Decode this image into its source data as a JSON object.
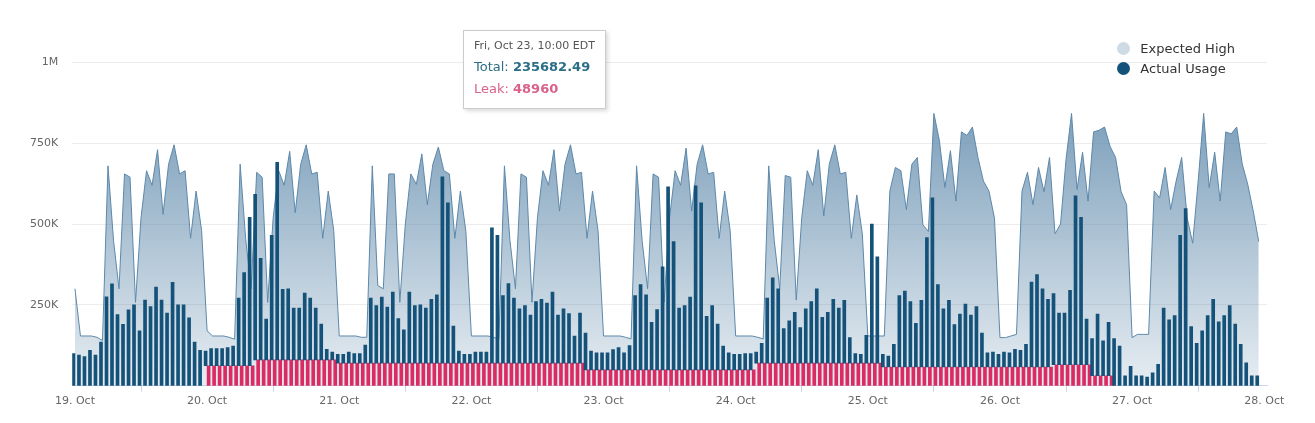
{
  "chart_data": {
    "type": "bar",
    "legend": "top right",
    "grid": "y",
    "annotations": [
      "Fri, Oct 23, 10:00 EDT",
      "Total: 235682.49",
      "Leak: 48960"
    ],
    "xlim": [
      "--10-18T23:30",
      "--10-28T00:30"
    ],
    "xticks": [
      {
        "value": "--10-19",
        "label": "19. Oct"
      },
      {
        "value": "--10-20",
        "label": "20. Oct"
      },
      {
        "value": "--10-21",
        "label": "21. Oct"
      },
      {
        "value": "--10-22",
        "label": "22. Oct"
      },
      {
        "value": "--10-23",
        "label": "23. Oct"
      },
      {
        "value": "--10-24",
        "label": "24. Oct"
      },
      {
        "value": "--10-25",
        "label": "25. Oct"
      },
      {
        "value": "--10-26",
        "label": "26. Oct"
      },
      {
        "value": "--10-27",
        "label": "27. Oct"
      },
      {
        "value": "--10-28",
        "label": "28. Oct"
      }
    ],
    "ylim": [
      0,
      1100000
    ],
    "yticks": [
      {
        "value": 250000,
        "label": "250K"
      },
      {
        "value": 500000,
        "label": "500K"
      },
      {
        "value": 750000,
        "label": "750K"
      },
      {
        "value": 1000000,
        "label": "1M"
      }
    ],
    "x": [
      "--10-19T00:00",
      "--10-19T01:00",
      "--10-19T02:00",
      "--10-19T03:00",
      "--10-19T04:00",
      "--10-19T05:00",
      "--10-19T06:00",
      "--10-19T07:00",
      "--10-19T08:00",
      "--10-19T09:00",
      "--10-19T10:00",
      "--10-19T11:00",
      "--10-19T12:00",
      "--10-19T13:00",
      "--10-19T14:00",
      "--10-19T15:00",
      "--10-19T16:00",
      "--10-19T17:00",
      "--10-19T18:00",
      "--10-19T19:00",
      "--10-19T20:00",
      "--10-19T21:00",
      "--10-19T22:00",
      "--10-19T23:00",
      "--10-20T00:00",
      "--10-20T01:00",
      "--10-20T02:00",
      "--10-20T03:00",
      "--10-20T04:00",
      "--10-20T05:00",
      "--10-20T06:00",
      "--10-20T07:00",
      "--10-20T08:00",
      "--10-20T09:00",
      "--10-20T10:00",
      "--10-20T11:00",
      "--10-20T12:00",
      "--10-20T13:00",
      "--10-20T14:00",
      "--10-20T15:00",
      "--10-20T16:00",
      "--10-20T17:00",
      "--10-20T18:00",
      "--10-20T19:00",
      "--10-20T20:00",
      "--10-20T21:00",
      "--10-20T22:00",
      "--10-20T23:00",
      "--10-21T00:00",
      "--10-21T01:00",
      "--10-21T02:00",
      "--10-21T03:00",
      "--10-21T04:00",
      "--10-21T05:00",
      "--10-21T06:00",
      "--10-21T07:00",
      "--10-21T08:00",
      "--10-21T09:00",
      "--10-21T10:00",
      "--10-21T11:00",
      "--10-21T12:00",
      "--10-21T13:00",
      "--10-21T14:00",
      "--10-21T15:00",
      "--10-21T16:00",
      "--10-21T17:00",
      "--10-21T18:00",
      "--10-21T19:00",
      "--10-21T20:00",
      "--10-21T21:00",
      "--10-21T22:00",
      "--10-21T23:00",
      "--10-22T00:00",
      "--10-22T01:00",
      "--10-22T02:00",
      "--10-22T03:00",
      "--10-22T04:00",
      "--10-22T05:00",
      "--10-22T06:00",
      "--10-22T07:00",
      "--10-22T08:00",
      "--10-22T09:00",
      "--10-22T10:00",
      "--10-22T11:00",
      "--10-22T12:00",
      "--10-22T13:00",
      "--10-22T14:00",
      "--10-22T15:00",
      "--10-22T16:00",
      "--10-22T17:00",
      "--10-22T18:00",
      "--10-22T19:00",
      "--10-22T20:00",
      "--10-22T21:00",
      "--10-22T22:00",
      "--10-22T23:00",
      "--10-23T00:00",
      "--10-23T01:00",
      "--10-23T02:00",
      "--10-23T03:00",
      "--10-23T04:00",
      "--10-23T05:00",
      "--10-23T06:00",
      "--10-23T07:00",
      "--10-23T08:00",
      "--10-23T09:00",
      "--10-23T10:00",
      "--10-23T11:00",
      "--10-23T12:00",
      "--10-23T13:00",
      "--10-23T14:00",
      "--10-23T15:00",
      "--10-23T16:00",
      "--10-23T17:00",
      "--10-23T18:00",
      "--10-23T19:00",
      "--10-23T20:00",
      "--10-23T21:00",
      "--10-23T22:00",
      "--10-23T23:00",
      "--10-24T00:00",
      "--10-24T01:00",
      "--10-24T02:00",
      "--10-24T03:00",
      "--10-24T04:00",
      "--10-24T05:00",
      "--10-24T06:00",
      "--10-24T07:00",
      "--10-24T08:00",
      "--10-24T09:00",
      "--10-24T10:00",
      "--10-24T11:00",
      "--10-24T12:00",
      "--10-24T13:00",
      "--10-24T14:00",
      "--10-24T15:00",
      "--10-24T16:00",
      "--10-24T17:00",
      "--10-24T18:00",
      "--10-24T19:00",
      "--10-24T20:00",
      "--10-24T21:00",
      "--10-24T22:00",
      "--10-24T23:00",
      "--10-25T00:00",
      "--10-25T01:00",
      "--10-25T02:00",
      "--10-25T03:00",
      "--10-25T04:00",
      "--10-25T05:00",
      "--10-25T06:00",
      "--10-25T07:00",
      "--10-25T08:00",
      "--10-25T09:00",
      "--10-25T10:00",
      "--10-25T11:00",
      "--10-25T12:00",
      "--10-25T13:00",
      "--10-25T14:00",
      "--10-25T15:00",
      "--10-25T16:00",
      "--10-25T17:00",
      "--10-25T18:00",
      "--10-25T19:00",
      "--10-25T20:00",
      "--10-25T21:00",
      "--10-25T22:00",
      "--10-25T23:00",
      "--10-26T00:00",
      "--10-26T01:00",
      "--10-26T02:00",
      "--10-26T03:00",
      "--10-26T04:00",
      "--10-26T05:00",
      "--10-26T06:00",
      "--10-26T07:00",
      "--10-26T08:00",
      "--10-26T09:00",
      "--10-26T10:00",
      "--10-26T11:00",
      "--10-26T12:00",
      "--10-26T13:00",
      "--10-26T14:00",
      "--10-26T15:00",
      "--10-26T16:00",
      "--10-26T17:00",
      "--10-26T18:00",
      "--10-26T19:00",
      "--10-26T20:00",
      "--10-26T21:00",
      "--10-26T22:00",
      "--10-26T23:00",
      "--10-27T00:00",
      "--10-27T01:00",
      "--10-27T02:00",
      "--10-27T03:00",
      "--10-27T04:00",
      "--10-27T05:00",
      "--10-27T06:00",
      "--10-27T07:00",
      "--10-27T08:00",
      "--10-27T09:00",
      "--10-27T10:00",
      "--10-27T11:00",
      "--10-27T12:00",
      "--10-27T13:00",
      "--10-27T14:00",
      "--10-27T15:00",
      "--10-27T16:00",
      "--10-27T17:00",
      "--10-27T18:00",
      "--10-27T19:00",
      "--10-27T20:00",
      "--10-27T21:00",
      "--10-27T22:00",
      "--10-27T23:00"
    ],
    "series": [
      {
        "name": "Expected High",
        "type": "area",
        "color": "#5d88aa",
        "values": [
          300000,
          154000,
          154000,
          154000,
          150000,
          140000,
          680000,
          450000,
          300000,
          655000,
          645000,
          258000,
          520000,
          665000,
          620000,
          730000,
          530000,
          685000,
          745000,
          655000,
          665000,
          456000,
          602000,
          480000,
          170000,
          154000,
          154000,
          154000,
          150000,
          144000,
          685000,
          455000,
          300000,
          660000,
          645000,
          258000,
          520000,
          665000,
          620000,
          725000,
          535000,
          685000,
          745000,
          655000,
          660000,
          456000,
          602000,
          480000,
          154000,
          154000,
          154000,
          154000,
          150000,
          150000,
          680000,
          310000,
          300000,
          655000,
          655000,
          258000,
          500000,
          655000,
          623000,
          717000,
          560000,
          685000,
          738000,
          665000,
          655000,
          456000,
          602000,
          477000,
          154000,
          154000,
          154000,
          154000,
          150000,
          145000,
          680000,
          450000,
          300000,
          655000,
          645000,
          258000,
          520000,
          665000,
          620000,
          730000,
          540000,
          685000,
          745000,
          655000,
          660000,
          456000,
          602000,
          480000,
          154000,
          154000,
          154000,
          154000,
          150000,
          145000,
          680000,
          450000,
          300000,
          655000,
          645000,
          258000,
          520000,
          665000,
          620000,
          735000,
          540000,
          685000,
          745000,
          655000,
          660000,
          456000,
          602000,
          480000,
          154000,
          154000,
          154000,
          154000,
          150000,
          145000,
          680000,
          450000,
          300000,
          650000,
          645000,
          265000,
          520000,
          665000,
          620000,
          730000,
          525000,
          685000,
          745000,
          655000,
          660000,
          456000,
          590000,
          470000,
          154000,
          154000,
          154000,
          154000,
          602000,
          675000,
          665000,
          545000,
          685000,
          706000,
          498000,
          477000,
          842000,
          758000,
          613000,
          727000,
          571000,
          785000,
          774000,
          800000,
          706000,
          633000,
          602000,
          519000,
          149000,
          149000,
          154000,
          159000,
          602000,
          660000,
          560000,
          675000,
          600000,
          706000,
          470000,
          500000,
          700000,
          842000,
          607000,
          722000,
          571000,
          785000,
          790000,
          800000,
          740000,
          706000,
          600000,
          560000,
          149000,
          159000,
          159000,
          159000,
          602000,
          581000,
          675000,
          545000,
          633000,
          706000,
          519000,
          441000,
          633000,
          842000,
          613000,
          722000,
          571000,
          785000,
          779000,
          800000,
          686000,
          623000,
          540000,
          446000
        ]
      },
      {
        "color": "#dc2a62",
        "values": [
          null,
          null,
          null,
          null,
          null,
          null,
          null,
          null,
          null,
          null,
          null,
          null,
          null,
          null,
          null,
          null,
          null,
          null,
          null,
          null,
          null,
          null,
          null,
          null,
          62000,
          62000,
          62000,
          62000,
          62000,
          62000,
          62000,
          62000,
          62000,
          80000,
          80000,
          80000,
          80000,
          80000,
          80000,
          80000,
          80000,
          80000,
          80000,
          80000,
          80000,
          80000,
          80000,
          80000,
          70000,
          70000,
          70000,
          70000,
          70000,
          70000,
          70000,
          70000,
          70000,
          70000,
          70000,
          70000,
          70000,
          70000,
          70000,
          70000,
          70000,
          70000,
          70000,
          70000,
          70000,
          70000,
          70000,
          70000,
          70000,
          70000,
          70000,
          70000,
          70000,
          70000,
          70000,
          70000,
          70000,
          70000,
          70000,
          70000,
          70000,
          70000,
          70000,
          70000,
          70000,
          70000,
          70000,
          70000,
          70000,
          49000,
          49000,
          49000,
          49000,
          49000,
          49000,
          49000,
          49000,
          49000,
          49000,
          49000,
          49000,
          49000,
          49000,
          49000,
          49000,
          49000,
          49000,
          49000,
          49000,
          49000,
          49000,
          49000,
          49000,
          49000,
          49000,
          49000,
          49000,
          49000,
          49000,
          49000,
          70000,
          70000,
          70000,
          70000,
          70000,
          70000,
          70000,
          70000,
          70000,
          70000,
          70000,
          70000,
          70000,
          70000,
          70000,
          70000,
          70000,
          70000,
          70000,
          70000,
          70000,
          70000,
          70000,
          58000,
          58000,
          58000,
          58000,
          58000,
          58000,
          58000,
          58000,
          58000,
          58000,
          58000,
          58000,
          58000,
          58000,
          58000,
          58000,
          58000,
          58000,
          58000,
          58000,
          58000,
          58000,
          58000,
          58000,
          58000,
          58000,
          58000,
          58000,
          58000,
          58000,
          58000,
          65000,
          65000,
          65000,
          65000,
          65000,
          65000,
          65000,
          31000,
          31000,
          31000,
          31000,
          null,
          null,
          null,
          null,
          null,
          null,
          null,
          null,
          null,
          null,
          null,
          null,
          null,
          null,
          null,
          null,
          null,
          null,
          null,
          null,
          null,
          null,
          null,
          null,
          null,
          null,
          null
        ]
      },
      {
        "name": "Actual Usage",
        "color": "#14527a",
        "base": [
          0,
          0,
          0,
          0,
          0,
          0,
          0,
          0,
          0,
          0,
          0,
          0,
          0,
          0,
          0,
          0,
          0,
          0,
          0,
          0,
          0,
          0,
          0,
          0,
          62000,
          62000,
          62000,
          62000,
          62000,
          62000,
          62000,
          62000,
          62000,
          80000,
          80000,
          80000,
          80000,
          80000,
          80000,
          80000,
          80000,
          80000,
          80000,
          80000,
          80000,
          80000,
          80000,
          80000,
          70000,
          70000,
          70000,
          70000,
          70000,
          70000,
          70000,
          70000,
          70000,
          70000,
          70000,
          70000,
          70000,
          70000,
          70000,
          70000,
          70000,
          70000,
          70000,
          70000,
          70000,
          70000,
          70000,
          70000,
          70000,
          70000,
          70000,
          70000,
          70000,
          70000,
          70000,
          70000,
          70000,
          70000,
          70000,
          70000,
          70000,
          70000,
          70000,
          70000,
          70000,
          70000,
          70000,
          70000,
          70000,
          49000,
          49000,
          49000,
          49000,
          49000,
          49000,
          49000,
          49000,
          49000,
          49000,
          49000,
          49000,
          49000,
          49000,
          49000,
          49000,
          49000,
          49000,
          49000,
          49000,
          49000,
          49000,
          49000,
          49000,
          49000,
          49000,
          49000,
          49000,
          49000,
          49000,
          49000,
          70000,
          70000,
          70000,
          70000,
          70000,
          70000,
          70000,
          70000,
          70000,
          70000,
          70000,
          70000,
          70000,
          70000,
          70000,
          70000,
          70000,
          70000,
          70000,
          70000,
          70000,
          70000,
          70000,
          58000,
          58000,
          58000,
          58000,
          58000,
          58000,
          58000,
          58000,
          58000,
          58000,
          58000,
          58000,
          58000,
          58000,
          58000,
          58000,
          58000,
          58000,
          58000,
          58000,
          58000,
          58000,
          58000,
          58000,
          58000,
          58000,
          58000,
          58000,
          58000,
          58000,
          58000,
          65000,
          65000,
          65000,
          65000,
          65000,
          65000,
          65000,
          31000,
          31000,
          31000,
          31000,
          0,
          0,
          0,
          0,
          0,
          0,
          0,
          0,
          0,
          0,
          0,
          0,
          0,
          0,
          0,
          0,
          0,
          0,
          0,
          0,
          0,
          0,
          0,
          0,
          0,
          0,
          0
        ],
        "values": [
          100000,
          95000,
          90000,
          110000,
          95000,
          135000,
          275000,
          315000,
          220000,
          190000,
          235000,
          250000,
          170000,
          265000,
          245000,
          305000,
          265000,
          225000,
          320000,
          250000,
          250000,
          210000,
          135000,
          110000,
          45000,
          53000,
          53000,
          53000,
          56000,
          61000,
          209000,
          288000,
          459000,
          512000,
          314000,
          126000,
          385000,
          611000,
          218000,
          220000,
          160000,
          160000,
          207000,
          191000,
          160000,
          111000,
          33000,
          24000,
          27000,
          27000,
          34000,
          30000,
          30000,
          56000,
          201000,
          178000,
          204000,
          173000,
          220000,
          138000,
          103000,
          220000,
          178000,
          180000,
          170000,
          197000,
          211000,
          576000,
          496000,
          115000,
          37000,
          27000,
          27000,
          34000,
          34000,
          34000,
          418000,
          395000,
          209000,
          246000,
          201000,
          168000,
          178000,
          149000,
          190000,
          197000,
          186000,
          220000,
          149000,
          168000,
          153000,
          84000,
          155000,
          114000,
          58000,
          53000,
          53000,
          53000,
          63000,
          69000,
          53000,
          75000,
          230000,
          264000,
          232000,
          147000,
          187000,
          319000,
          566000,
          397000,
          191000,
          199000,
          225000,
          569000,
          517000,
          166000,
          199000,
          142000,
          74000,
          53000,
          48000,
          48000,
          51000,
          51000,
          34000,
          61000,
          201000,
          264000,
          230000,
          107000,
          131000,
          157000,
          110000,
          168000,
          190000,
          230000,
          142000,
          157000,
          197000,
          170000,
          194000,
          79000,
          30000,
          27000,
          86000,
          430000,
          329000,
          39000,
          34000,
          70000,
          221000,
          235000,
          202000,
          135000,
          206000,
          400000,
          523000,
          255000,
          180000,
          206000,
          131000,
          164000,
          195000,
          161000,
          187000,
          105000,
          44000,
          46000,
          39000,
          46000,
          44000,
          55000,
          52000,
          70000,
          263000,
          286000,
          242000,
          209000,
          220000,
          160000,
          160000,
          230000,
          522000,
          456000,
          141000,
          115000,
          191000,
          108000,
          165000,
          146000,
          123000,
          31000,
          60000,
          31000,
          31000,
          27000,
          40000,
          66000,
          240000,
          204000,
          217000,
          465000,
          548000,
          183000,
          131000,
          170000,
          217000,
          267000,
          198000,
          217000,
          248000,
          191000,
          128000,
          71000,
          31000,
          31000
        ]
      }
    ]
  }
}
